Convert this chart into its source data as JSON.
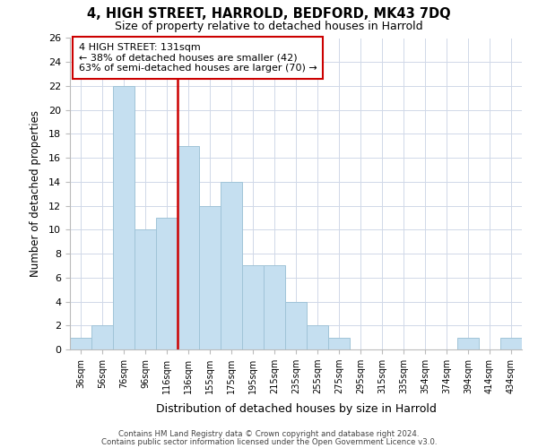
{
  "title": "4, HIGH STREET, HARROLD, BEDFORD, MK43 7DQ",
  "subtitle": "Size of property relative to detached houses in Harrold",
  "xlabel": "Distribution of detached houses by size in Harrold",
  "ylabel": "Number of detached properties",
  "bar_labels": [
    "36sqm",
    "56sqm",
    "76sqm",
    "96sqm",
    "116sqm",
    "136sqm",
    "155sqm",
    "175sqm",
    "195sqm",
    "215sqm",
    "235sqm",
    "255sqm",
    "275sqm",
    "295sqm",
    "315sqm",
    "335sqm",
    "354sqm",
    "374sqm",
    "394sqm",
    "414sqm",
    "434sqm"
  ],
  "bar_values": [
    1,
    2,
    22,
    10,
    11,
    17,
    12,
    14,
    7,
    7,
    4,
    2,
    1,
    0,
    0,
    0,
    0,
    0,
    1,
    0,
    1
  ],
  "bar_color": "#c5dff0",
  "bar_edge_color": "#a0c4d8",
  "red_line_bar_index": 5,
  "highlight_color": "#cc0000",
  "ylim": [
    0,
    26
  ],
  "yticks": [
    0,
    2,
    4,
    6,
    8,
    10,
    12,
    14,
    16,
    18,
    20,
    22,
    24,
    26
  ],
  "annotation_title": "4 HIGH STREET: 131sqm",
  "annotation_line1": "← 38% of detached houses are smaller (42)",
  "annotation_line2": "63% of semi-detached houses are larger (70) →",
  "footer_line1": "Contains HM Land Registry data © Crown copyright and database right 2024.",
  "footer_line2": "Contains public sector information licensed under the Open Government Licence v3.0.",
  "background_color": "#ffffff",
  "grid_color": "#d0d8e8"
}
